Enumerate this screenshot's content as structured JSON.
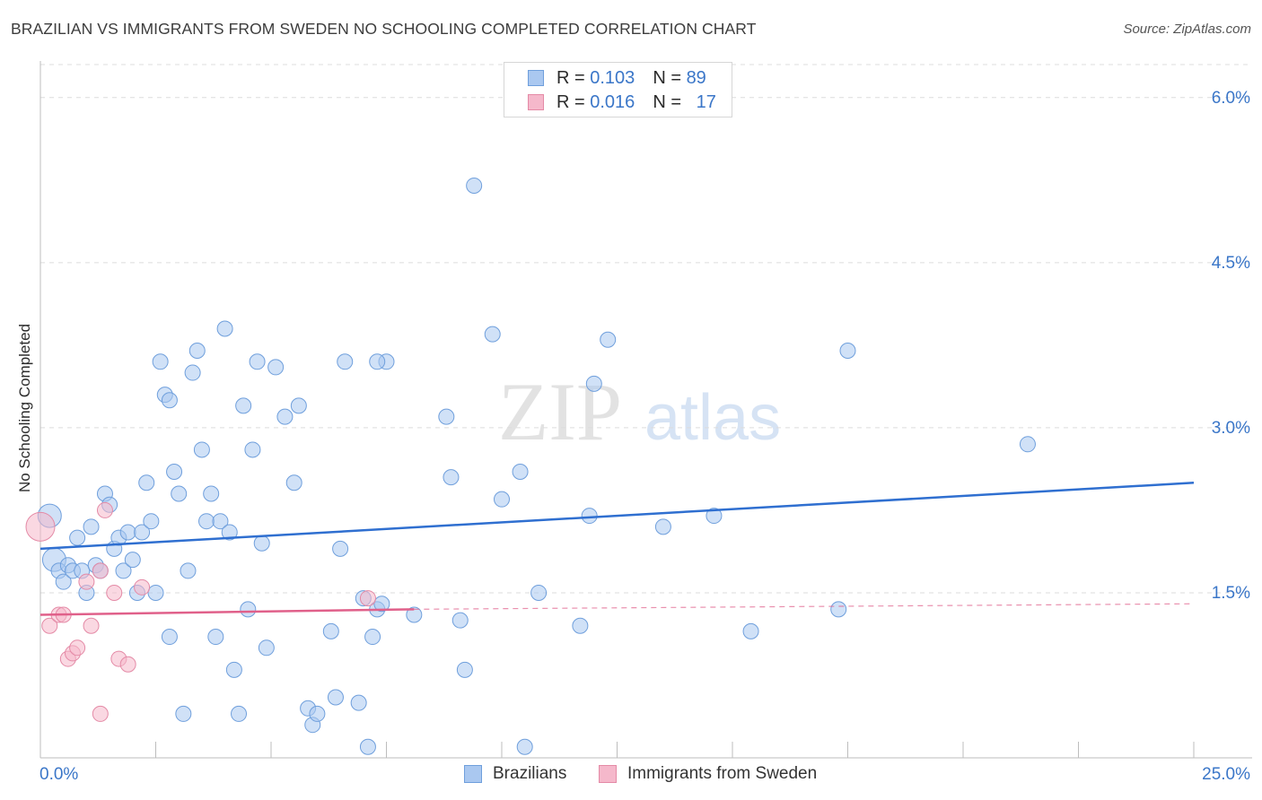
{
  "header": {
    "title": "BRAZILIAN VS IMMIGRANTS FROM SWEDEN NO SCHOOLING COMPLETED CORRELATION CHART",
    "source": "Source: ZipAtlas.com"
  },
  "legend": {
    "rows": [
      {
        "r_label": "R =",
        "r_value": "0.103",
        "n_label": "N =",
        "n_value": "89",
        "color": "#aac8f0"
      },
      {
        "r_label": "R =",
        "r_value": "0.016",
        "n_label": "N =",
        "n_value": "17",
        "color": "#f5b8cb"
      }
    ]
  },
  "bottom_legend": {
    "items": [
      {
        "label": "Brazilians",
        "color": "#aac8f0"
      },
      {
        "label": "Immigrants from Sweden",
        "color": "#f5b8cb"
      }
    ]
  },
  "watermark": {
    "zip": "ZIP",
    "atlas": "atlas"
  },
  "chart_data": {
    "type": "scatter",
    "title": "BRAZILIAN VS IMMIGRANTS FROM SWEDEN NO SCHOOLING COMPLETED CORRELATION CHART",
    "xlabel": "",
    "ylabel": "No Schooling Completed",
    "xlim": [
      0,
      25
    ],
    "ylim": [
      0,
      6.3
    ],
    "x_tick_labels": {
      "left": "0.0%",
      "right": "25.0%"
    },
    "y_ticks": [
      1.5,
      3.0,
      4.5,
      6.0
    ],
    "y_tick_labels": [
      "1.5%",
      "3.0%",
      "4.5%",
      "6.0%"
    ],
    "series": [
      {
        "name": "Brazilians",
        "color": "#aac8f0",
        "stroke": "#6f9fdc",
        "trend": {
          "x0": 0,
          "y0": 1.9,
          "x1": 25,
          "y1": 2.5,
          "color": "#2f6fd0"
        },
        "points": [
          [
            0.2,
            2.2
          ],
          [
            0.3,
            1.8
          ],
          [
            0.4,
            1.7
          ],
          [
            0.5,
            1.6
          ],
          [
            0.6,
            1.75
          ],
          [
            0.7,
            1.7
          ],
          [
            0.8,
            2.0
          ],
          [
            0.9,
            1.7
          ],
          [
            1.0,
            1.5
          ],
          [
            1.1,
            2.1
          ],
          [
            1.2,
            1.75
          ],
          [
            1.3,
            1.7
          ],
          [
            1.4,
            2.4
          ],
          [
            1.5,
            2.3
          ],
          [
            1.6,
            1.9
          ],
          [
            1.7,
            2.0
          ],
          [
            1.8,
            1.7
          ],
          [
            1.9,
            2.05
          ],
          [
            2.0,
            1.8
          ],
          [
            2.1,
            1.5
          ],
          [
            2.2,
            2.05
          ],
          [
            2.3,
            2.5
          ],
          [
            2.4,
            2.15
          ],
          [
            2.5,
            1.5
          ],
          [
            2.6,
            3.6
          ],
          [
            2.7,
            3.3
          ],
          [
            2.8,
            1.1
          ],
          [
            2.9,
            2.6
          ],
          [
            3.0,
            2.4
          ],
          [
            3.1,
            0.4
          ],
          [
            3.2,
            1.7
          ],
          [
            3.3,
            3.5
          ],
          [
            3.4,
            3.7
          ],
          [
            3.5,
            2.8
          ],
          [
            3.6,
            2.15
          ],
          [
            3.7,
            2.4
          ],
          [
            3.8,
            1.1
          ],
          [
            3.9,
            2.15
          ],
          [
            4.0,
            3.9
          ],
          [
            4.1,
            2.05
          ],
          [
            4.2,
            0.8
          ],
          [
            4.3,
            0.4
          ],
          [
            4.4,
            3.2
          ],
          [
            4.5,
            1.35
          ],
          [
            4.6,
            2.8
          ],
          [
            4.7,
            3.6
          ],
          [
            4.8,
            1.95
          ],
          [
            4.9,
            1.0
          ],
          [
            5.1,
            3.55
          ],
          [
            5.3,
            3.1
          ],
          [
            5.5,
            2.5
          ],
          [
            5.6,
            3.2
          ],
          [
            5.8,
            0.45
          ],
          [
            5.9,
            0.3
          ],
          [
            6.0,
            0.4
          ],
          [
            6.3,
            1.15
          ],
          [
            6.4,
            0.55
          ],
          [
            6.5,
            1.9
          ],
          [
            6.6,
            3.6
          ],
          [
            6.9,
            0.5
          ],
          [
            7.1,
            0.1
          ],
          [
            7.2,
            1.1
          ],
          [
            7.0,
            1.45
          ],
          [
            7.3,
            1.35
          ],
          [
            7.4,
            1.4
          ],
          [
            7.5,
            3.6
          ],
          [
            8.1,
            1.3
          ],
          [
            8.8,
            3.1
          ],
          [
            8.9,
            2.55
          ],
          [
            9.1,
            1.25
          ],
          [
            9.2,
            0.8
          ],
          [
            9.4,
            5.2
          ],
          [
            9.8,
            3.85
          ],
          [
            10.0,
            2.35
          ],
          [
            10.4,
            2.6
          ],
          [
            10.5,
            0.1
          ],
          [
            10.8,
            1.5
          ],
          [
            11.7,
            1.2
          ],
          [
            11.9,
            2.2
          ],
          [
            12.0,
            3.4
          ],
          [
            12.3,
            3.8
          ],
          [
            13.5,
            2.1
          ],
          [
            14.6,
            2.2
          ],
          [
            15.4,
            1.15
          ],
          [
            17.3,
            1.35
          ],
          [
            17.5,
            3.7
          ],
          [
            21.4,
            2.85
          ],
          [
            2.8,
            3.25
          ],
          [
            7.3,
            3.6
          ]
        ]
      },
      {
        "name": "Immigrants from Sweden",
        "color": "#f5b8cb",
        "stroke": "#e48aa6",
        "trend": {
          "x0": 0,
          "y0": 1.3,
          "x1": 8.1,
          "y1": 1.35,
          "x_dash_end": 25,
          "y_dash_end": 1.4,
          "color": "#e0608a"
        },
        "points": [
          [
            0.0,
            2.1
          ],
          [
            0.2,
            1.2
          ],
          [
            0.4,
            1.3
          ],
          [
            0.5,
            1.3
          ],
          [
            0.6,
            0.9
          ],
          [
            0.7,
            0.95
          ],
          [
            0.8,
            1.0
          ],
          [
            1.0,
            1.6
          ],
          [
            1.1,
            1.2
          ],
          [
            1.3,
            0.4
          ],
          [
            1.4,
            2.25
          ],
          [
            1.6,
            1.5
          ],
          [
            1.7,
            0.9
          ],
          [
            1.9,
            0.85
          ],
          [
            2.2,
            1.55
          ],
          [
            7.1,
            1.45
          ],
          [
            1.3,
            1.7
          ]
        ]
      }
    ]
  }
}
